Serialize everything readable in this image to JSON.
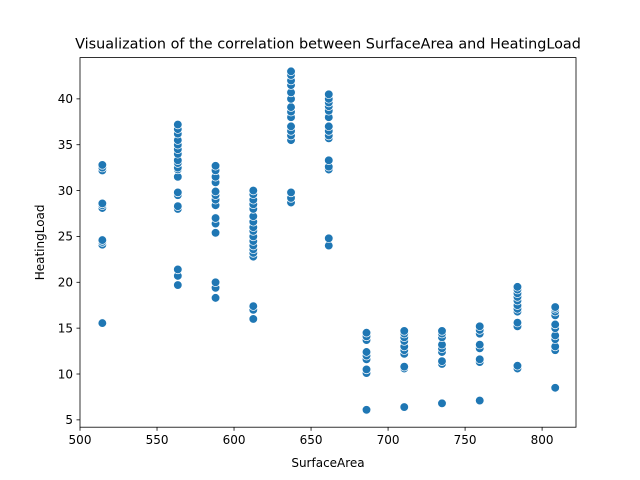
{
  "chart_data": {
    "type": "scatter",
    "title": "Visualization of the correlation between SurfaceArea and HeatingLoad",
    "xlabel": "SurfaceArea",
    "ylabel": "HeatingLoad",
    "xlim": [
      500,
      822
    ],
    "ylim": [
      4.2,
      44.5
    ],
    "xticks": [
      500,
      550,
      600,
      650,
      700,
      750,
      800
    ],
    "yticks": [
      5,
      10,
      15,
      20,
      25,
      30,
      35,
      40
    ],
    "grid": false,
    "legend": "none",
    "color": "#1f77b4",
    "series": [
      {
        "points": [
          [
            514.5,
            15.55
          ],
          [
            514.5,
            24.1
          ],
          [
            514.5,
            24.4
          ],
          [
            514.5,
            24.6
          ],
          [
            514.5,
            28.1
          ],
          [
            514.5,
            28.4
          ],
          [
            514.5,
            28.6
          ],
          [
            514.5,
            32.2
          ],
          [
            514.5,
            32.5
          ],
          [
            514.5,
            32.8
          ],
          [
            563.5,
            19.7
          ],
          [
            563.5,
            20.7
          ],
          [
            563.5,
            21.4
          ],
          [
            563.5,
            28.0
          ],
          [
            563.5,
            28.3
          ],
          [
            563.5,
            29.5
          ],
          [
            563.5,
            29.8
          ],
          [
            563.5,
            31.5
          ],
          [
            563.5,
            32.3
          ],
          [
            563.5,
            32.5
          ],
          [
            563.5,
            33.0
          ],
          [
            563.5,
            33.3
          ],
          [
            563.5,
            34.0
          ],
          [
            563.5,
            34.5
          ],
          [
            563.5,
            35.0
          ],
          [
            563.5,
            35.5
          ],
          [
            563.5,
            36.2
          ],
          [
            563.5,
            36.7
          ],
          [
            563.5,
            37.2
          ],
          [
            588.0,
            18.3
          ],
          [
            588.0,
            19.4
          ],
          [
            588.0,
            20.0
          ],
          [
            588.0,
            25.4
          ],
          [
            588.0,
            26.4
          ],
          [
            588.0,
            27.0
          ],
          [
            588.0,
            28.4
          ],
          [
            588.0,
            29.0
          ],
          [
            588.0,
            29.5
          ],
          [
            588.0,
            29.9
          ],
          [
            588.0,
            30.9
          ],
          [
            588.0,
            31.5
          ],
          [
            588.0,
            32.2
          ],
          [
            588.0,
            32.7
          ],
          [
            612.5,
            16.0
          ],
          [
            612.5,
            17.0
          ],
          [
            612.5,
            17.4
          ],
          [
            612.5,
            22.8
          ],
          [
            612.5,
            23.2
          ],
          [
            612.5,
            23.6
          ],
          [
            612.5,
            24.0
          ],
          [
            612.5,
            24.5
          ],
          [
            612.5,
            25.0
          ],
          [
            612.5,
            25.6
          ],
          [
            612.5,
            26.0
          ],
          [
            612.5,
            26.6
          ],
          [
            612.5,
            27.2
          ],
          [
            612.5,
            28.0
          ],
          [
            612.5,
            28.5
          ],
          [
            612.5,
            29.0
          ],
          [
            612.5,
            29.6
          ],
          [
            612.5,
            30.0
          ],
          [
            637.0,
            28.7
          ],
          [
            637.0,
            29.2
          ],
          [
            637.0,
            29.8
          ],
          [
            637.0,
            35.5
          ],
          [
            637.0,
            36.0
          ],
          [
            637.0,
            36.5
          ],
          [
            637.0,
            37.0
          ],
          [
            637.0,
            38.0
          ],
          [
            637.0,
            38.6
          ],
          [
            637.0,
            39.1
          ],
          [
            637.0,
            40.0
          ],
          [
            637.0,
            40.7
          ],
          [
            637.0,
            41.5
          ],
          [
            637.0,
            42.0
          ],
          [
            637.0,
            42.6
          ],
          [
            637.0,
            43.0
          ],
          [
            661.5,
            24.0
          ],
          [
            661.5,
            24.8
          ],
          [
            661.5,
            32.3
          ],
          [
            661.5,
            32.6
          ],
          [
            661.5,
            33.3
          ],
          [
            661.5,
            35.7
          ],
          [
            661.5,
            36.0
          ],
          [
            661.5,
            36.5
          ],
          [
            661.5,
            37.0
          ],
          [
            661.5,
            38.0
          ],
          [
            661.5,
            38.7
          ],
          [
            661.5,
            39.2
          ],
          [
            661.5,
            39.6
          ],
          [
            661.5,
            40.0
          ],
          [
            661.5,
            40.5
          ],
          [
            686.0,
            6.1
          ],
          [
            686.0,
            10.1
          ],
          [
            686.0,
            10.5
          ],
          [
            686.0,
            11.6
          ],
          [
            686.0,
            12.0
          ],
          [
            686.0,
            12.4
          ],
          [
            686.0,
            13.7
          ],
          [
            686.0,
            14.1
          ],
          [
            686.0,
            14.5
          ],
          [
            710.5,
            6.4
          ],
          [
            710.5,
            10.6
          ],
          [
            710.5,
            10.8
          ],
          [
            710.5,
            12.2
          ],
          [
            710.5,
            12.6
          ],
          [
            710.5,
            13.0
          ],
          [
            710.5,
            13.6
          ],
          [
            710.5,
            14.0
          ],
          [
            710.5,
            14.4
          ],
          [
            710.5,
            14.7
          ],
          [
            735.0,
            6.8
          ],
          [
            735.0,
            11.1
          ],
          [
            735.0,
            11.4
          ],
          [
            735.0,
            12.4
          ],
          [
            735.0,
            12.8
          ],
          [
            735.0,
            13.2
          ],
          [
            735.0,
            14.0
          ],
          [
            735.0,
            14.4
          ],
          [
            735.0,
            14.7
          ],
          [
            759.5,
            7.1
          ],
          [
            759.5,
            11.3
          ],
          [
            759.5,
            11.6
          ],
          [
            759.5,
            12.8
          ],
          [
            759.5,
            13.2
          ],
          [
            759.5,
            14.4
          ],
          [
            759.5,
            14.8
          ],
          [
            759.5,
            15.2
          ],
          [
            784.0,
            10.6
          ],
          [
            784.0,
            10.9
          ],
          [
            784.0,
            15.2
          ],
          [
            784.0,
            15.6
          ],
          [
            784.0,
            16.8
          ],
          [
            784.0,
            17.1
          ],
          [
            784.0,
            17.5
          ],
          [
            784.0,
            18.0
          ],
          [
            784.0,
            18.4
          ],
          [
            784.0,
            18.8
          ],
          [
            784.0,
            19.2
          ],
          [
            784.0,
            19.5
          ],
          [
            808.5,
            8.5
          ],
          [
            808.5,
            12.6
          ],
          [
            808.5,
            13.0
          ],
          [
            808.5,
            13.8
          ],
          [
            808.5,
            14.2
          ],
          [
            808.5,
            15.0
          ],
          [
            808.5,
            15.4
          ],
          [
            808.5,
            16.4
          ],
          [
            808.5,
            16.8
          ],
          [
            808.5,
            17.1
          ],
          [
            808.5,
            17.3
          ]
        ]
      }
    ]
  }
}
